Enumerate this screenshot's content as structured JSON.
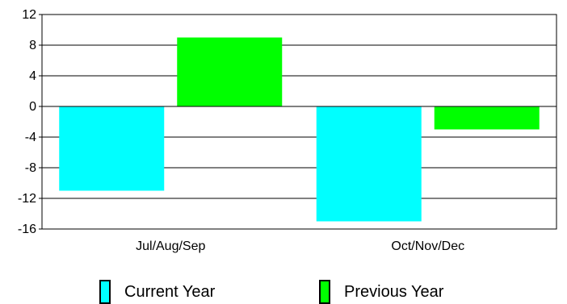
{
  "chart_data": {
    "type": "bar",
    "categories": [
      "Jul/Aug/Sep",
      "Oct/Nov/Dec"
    ],
    "series": [
      {
        "name": "Current Year",
        "values": [
          -11,
          -15
        ],
        "color": "#00ffff"
      },
      {
        "name": "Previous Year",
        "values": [
          9,
          -3
        ],
        "color": "#00ff00"
      }
    ],
    "yticks": [
      12,
      8,
      4,
      0,
      -4,
      -8,
      -12,
      -16
    ],
    "ylim": [
      -16,
      12
    ],
    "grid": true,
    "legend_position": "bottom"
  }
}
